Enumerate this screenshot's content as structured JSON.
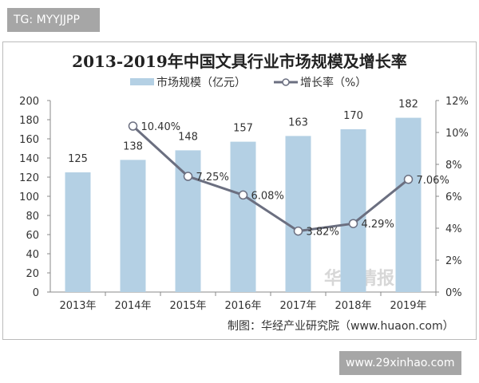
{
  "tags": {
    "top": "TG: MYYJJPP",
    "bottom": "www.29xinhao.com"
  },
  "chart_data": {
    "type": "bar+line",
    "title": "2013-2019年中国文具行业市场规模及增长率",
    "categories": [
      "2013年",
      "2014年",
      "2015年",
      "2016年",
      "2017年",
      "2018年",
      "2019年"
    ],
    "series": [
      {
        "name": "市场规模（亿元）",
        "type": "bar",
        "axis": "left",
        "values": [
          125,
          138,
          148,
          157,
          163,
          170,
          182
        ],
        "color": "#b4d0e4"
      },
      {
        "name": "增长率（%）",
        "type": "line",
        "axis": "right",
        "values": [
          null,
          10.4,
          7.25,
          6.08,
          3.82,
          4.29,
          7.06
        ],
        "labels": [
          "",
          "10.40%",
          "7.25%",
          "6.08%",
          "3.82%",
          "4.29%",
          "7.06%"
        ],
        "color": "#6b6f80"
      }
    ],
    "left_axis": {
      "ylim": [
        0,
        200
      ],
      "ticks": [
        "0",
        "20",
        "40",
        "60",
        "80",
        "100",
        "120",
        "140",
        "160",
        "180",
        "200"
      ]
    },
    "right_axis": {
      "ylim": [
        0,
        12
      ],
      "ticks": [
        "0%",
        "2%",
        "4%",
        "6%",
        "8%",
        "10%",
        "12%"
      ]
    },
    "legend": "top",
    "grid": false,
    "source": "制图：华经产业研究院（www.huaon.com）",
    "watermark": "华经情报网 huaon.com"
  }
}
